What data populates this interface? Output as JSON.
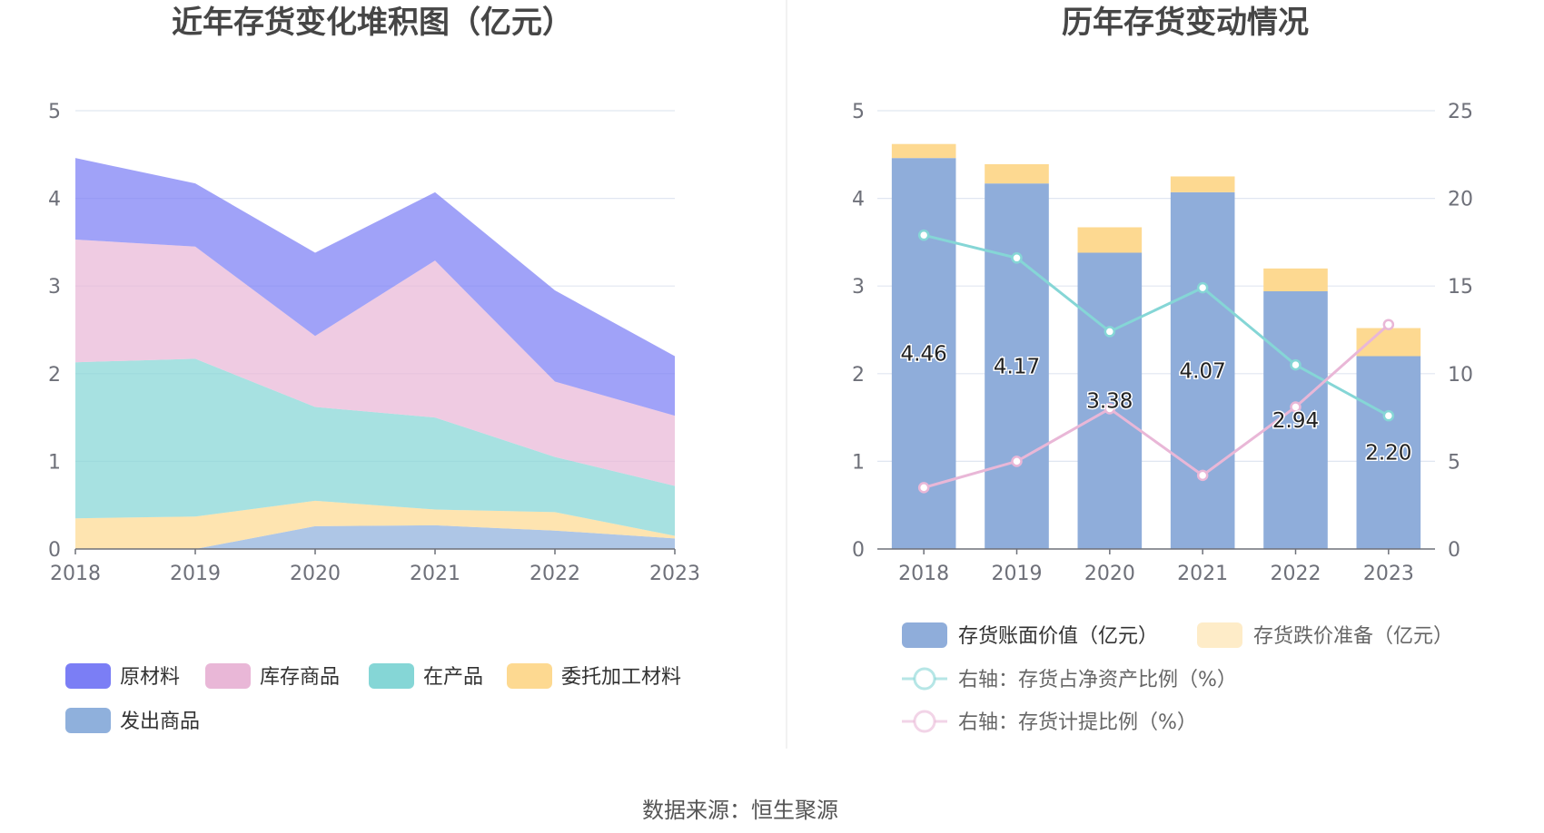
{
  "source_text": "数据来源：恒生聚源",
  "chart_data": [
    {
      "type": "area",
      "title": "近年存货变化堆积图（亿元）",
      "x": [
        "2018",
        "2019",
        "2020",
        "2021",
        "2022",
        "2023"
      ],
      "ylim": [
        0,
        5
      ],
      "yticks": [
        "0",
        "1",
        "2",
        "3",
        "4",
        "5"
      ],
      "grid": true,
      "legend_position": "bottom",
      "series": [
        {
          "name": "发出商品",
          "color": "#8fb0dc",
          "values": [
            0.0,
            0.0,
            0.26,
            0.27,
            0.21,
            0.12
          ]
        },
        {
          "name": "委托加工材料",
          "color": "#fdd991",
          "values": [
            0.35,
            0.37,
            0.29,
            0.18,
            0.21,
            0.03
          ]
        },
        {
          "name": "在产品",
          "color": "#85d6d6",
          "values": [
            1.78,
            1.8,
            1.07,
            1.05,
            0.63,
            0.57
          ]
        },
        {
          "name": "库存商品",
          "color": "#e9b7d7",
          "values": [
            1.4,
            1.28,
            0.81,
            1.79,
            0.86,
            0.8
          ]
        },
        {
          "name": "原材料",
          "color": "#7b7ef5",
          "values": [
            0.93,
            0.72,
            0.95,
            0.78,
            1.04,
            0.68
          ]
        }
      ],
      "legend_order": [
        "原材料",
        "库存商品",
        "在产品",
        "委托加工材料",
        "发出商品"
      ]
    },
    {
      "type": "bar",
      "title": "历年存货变动情况",
      "x": [
        "2018",
        "2019",
        "2020",
        "2021",
        "2022",
        "2023"
      ],
      "ylim": [
        0,
        5
      ],
      "yticks": [
        "0",
        "1",
        "2",
        "3",
        "4",
        "5"
      ],
      "y2lim": [
        0,
        25
      ],
      "y2ticks": [
        "0",
        "5",
        "10",
        "15",
        "20",
        "25"
      ],
      "legend_position": "bottom",
      "series": [
        {
          "name": "存货账面价值（亿元）",
          "kind": "bar",
          "color": "#8fadda",
          "values": [
            4.46,
            4.17,
            3.38,
            4.07,
            2.94,
            2.2
          ],
          "labels": [
            "4.46",
            "4.17",
            "3.38",
            "4.07",
            "2.94",
            "2.20"
          ]
        },
        {
          "name": "存货跌价准备（亿元）",
          "kind": "bar",
          "color": "#fdd991",
          "values": [
            0.16,
            0.22,
            0.29,
            0.18,
            0.26,
            0.32
          ]
        },
        {
          "name": "右轴：存货占净资产比例（%）",
          "kind": "line",
          "axis": "right",
          "color": "#85d6d6",
          "values": [
            17.9,
            16.6,
            12.4,
            14.9,
            10.5,
            7.6
          ]
        },
        {
          "name": "右轴：存货计提比例（%）",
          "kind": "line",
          "axis": "right",
          "color": "#e9b7d7",
          "values": [
            3.5,
            5.0,
            8.0,
            4.2,
            8.1,
            12.8
          ]
        }
      ]
    }
  ]
}
